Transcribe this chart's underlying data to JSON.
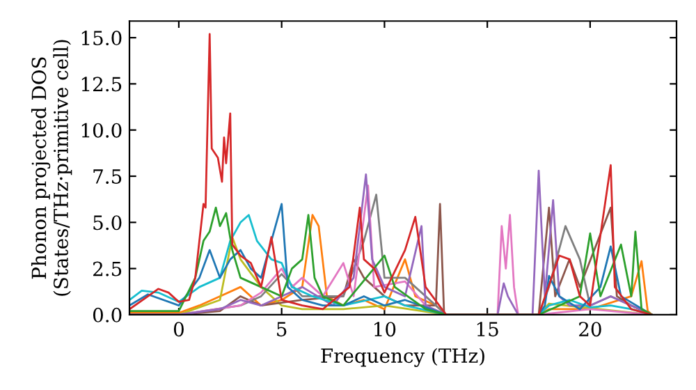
{
  "chart_data": {
    "type": "line",
    "xlabel": "Frequency (THz)",
    "ylabel": "Phonon projected DOS\n(States/THz·primitive cell)",
    "xlim": [
      -2.4,
      24.2
    ],
    "xticks": [
      0,
      5,
      10,
      15,
      20
    ],
    "ylim": [
      0,
      15.9
    ],
    "yticks": [
      {
        "value": 0,
        "label": "0.0"
      },
      {
        "value": 2.5,
        "label": "2.5"
      },
      {
        "value": 5,
        "label": "5.0"
      },
      {
        "value": 7.5,
        "label": "7.5"
      },
      {
        "value": 10,
        "label": "10.0"
      },
      {
        "value": 12.5,
        "label": "12.5"
      },
      {
        "value": 15,
        "label": "15.0"
      }
    ],
    "grid": false,
    "legend": false,
    "marker": "none",
    "line_style": "solid",
    "series": [
      {
        "color": "#ff7f0e",
        "x": [
          -2.4,
          0,
          1,
          2,
          3,
          4,
          5,
          6,
          6.5,
          6.8,
          7.2,
          8,
          9,
          10,
          11,
          11.5,
          12.5,
          13,
          17.5,
          18,
          20,
          22,
          22.5,
          22.8,
          23
        ],
        "values": [
          0.1,
          0.1,
          0.5,
          1.0,
          1.5,
          0.5,
          0.8,
          1.5,
          5.4,
          4.8,
          1.0,
          0.5,
          0.8,
          0.3,
          3.0,
          1.0,
          0.5,
          0,
          0,
          0.3,
          0.3,
          1.0,
          2.9,
          0.2,
          0
        ]
      },
      {
        "color": "#bcbd22",
        "x": [
          -2.4,
          0,
          2,
          2.6,
          3,
          4,
          5,
          6,
          8,
          10,
          13,
          17.5,
          18,
          23
        ],
        "values": [
          0,
          0,
          0.8,
          4.2,
          3.0,
          1.5,
          0.5,
          0.3,
          0.3,
          0.5,
          0,
          0,
          0.6,
          0
        ]
      },
      {
        "color": "#8c564b",
        "x": [
          -2.4,
          0,
          2,
          3,
          4,
          6,
          8,
          8.5,
          9,
          10,
          11,
          12.5,
          12.7,
          12.9,
          17.5,
          18,
          18.3,
          19,
          19.5,
          21,
          21.3,
          22,
          23
        ],
        "values": [
          0,
          0,
          0.2,
          1.0,
          0.5,
          0.8,
          1.0,
          3.0,
          2.0,
          1.0,
          0.5,
          0.5,
          6.0,
          0,
          0,
          5.8,
          1.0,
          3.0,
          1.5,
          5.8,
          1.0,
          0.5,
          0
        ]
      },
      {
        "color": "#7f7f7f",
        "x": [
          -2.4,
          0,
          3,
          4,
          5,
          6,
          8,
          9,
          9.6,
          10,
          11,
          12,
          13,
          17.5,
          18,
          18.8,
          19.5,
          20,
          21,
          23
        ],
        "values": [
          0,
          0,
          0.5,
          1.0,
          2.2,
          1.0,
          1.0,
          4.0,
          6.5,
          2.0,
          2.0,
          1.0,
          0,
          0,
          1.5,
          4.8,
          3.0,
          0.5,
          1.0,
          0
        ]
      },
      {
        "color": "#e377c2",
        "x": [
          -2.4,
          0,
          3,
          4,
          5,
          5.5,
          6,
          7,
          8,
          8.5,
          9.2,
          9.5,
          11,
          12,
          13,
          15.5,
          15.7,
          15.9,
          16.1,
          16.3,
          16.5,
          17.5,
          20,
          23
        ],
        "values": [
          0,
          0,
          0.5,
          1.2,
          2.5,
          1.5,
          2.0,
          1.0,
          2.8,
          1.0,
          7.0,
          1.5,
          1.8,
          0.5,
          0,
          0,
          4.8,
          2.5,
          5.4,
          1.5,
          0,
          0,
          0.3,
          0
        ]
      },
      {
        "color": "#9467bd",
        "x": [
          -2.4,
          0,
          2,
          3,
          4,
          5,
          6,
          7.5,
          8.5,
          9.1,
          9.4,
          10,
          11,
          11.8,
          12,
          13,
          15.5,
          15.8,
          16,
          16.5,
          17.2,
          17.5,
          17.8,
          18.2,
          18.5,
          19,
          20,
          21,
          23
        ],
        "values": [
          0,
          0,
          0.3,
          0.8,
          0.5,
          1.0,
          1.5,
          0.5,
          2.0,
          7.6,
          3.0,
          1.5,
          1.0,
          4.8,
          0.5,
          0,
          0,
          1.7,
          1.0,
          0,
          0,
          7.8,
          1.0,
          6.2,
          1.0,
          0.5,
          0.5,
          1.0,
          0
        ]
      },
      {
        "color": "#17becf",
        "x": [
          -2.4,
          -1.8,
          -1,
          0,
          1,
          2,
          2.5,
          3,
          3.4,
          3.8,
          4.5,
          5,
          5.5,
          6.5,
          8,
          10,
          11,
          13,
          17.5,
          18,
          19,
          20,
          21,
          22,
          23
        ],
        "values": [
          0.8,
          1.3,
          1.2,
          0.7,
          1.5,
          2.0,
          4.0,
          5.0,
          5.4,
          4.0,
          3.0,
          2.8,
          1.5,
          1.0,
          0.5,
          1.0,
          0.5,
          0,
          0,
          0.5,
          0.8,
          0.4,
          0.5,
          0.3,
          0
        ]
      },
      {
        "color": "#1f77b4",
        "x": [
          -2.4,
          -1.5,
          0,
          1,
          1.5,
          2,
          2.5,
          3,
          3.5,
          4,
          5,
          5.3,
          6,
          7,
          8,
          9,
          10,
          11,
          13,
          17.5,
          17.8,
          18,
          18.5,
          19.5,
          20.5,
          21,
          21.5,
          23
        ],
        "values": [
          0.5,
          1.1,
          0.5,
          2.0,
          3.5,
          2.0,
          3.0,
          3.5,
          2.5,
          2.0,
          6.0,
          1.5,
          0.8,
          0.5,
          0.5,
          1.0,
          0.5,
          0.8,
          0,
          0,
          0.5,
          2.1,
          1.0,
          0.3,
          1.5,
          3.7,
          1.0,
          0
        ]
      },
      {
        "color": "#2ca02c",
        "x": [
          -2.4,
          0,
          0.8,
          1.2,
          1.5,
          1.8,
          2.0,
          2.3,
          2.6,
          3,
          4,
          5,
          5.5,
          6,
          6.3,
          6.6,
          7,
          8,
          10,
          10.5,
          12,
          13,
          17.5,
          18.5,
          19.5,
          20,
          20.5,
          21.5,
          22,
          22.2,
          22.5,
          23
        ],
        "values": [
          0.2,
          0.2,
          2.0,
          4.0,
          4.5,
          5.8,
          4.8,
          5.5,
          3.5,
          2.0,
          1.5,
          1.0,
          2.5,
          3.0,
          5.4,
          2.0,
          1.0,
          0.5,
          3.2,
          1.5,
          0.3,
          0,
          0,
          0.5,
          1.0,
          4.4,
          1.0,
          3.8,
          1.0,
          4.5,
          0.3,
          0
        ]
      },
      {
        "color": "#d62728",
        "x": [
          -2.4,
          -1.5,
          -1,
          -0.5,
          0,
          0.5,
          0.8,
          1.0,
          1.2,
          1.3,
          1.5,
          1.6,
          1.9,
          2.1,
          2.2,
          2.3,
          2.5,
          2.6,
          3.0,
          3.5,
          4.0,
          4.5,
          5.0,
          6.0,
          7,
          8.3,
          8.8,
          9.0,
          9.5,
          10,
          11,
          11.5,
          12,
          12.8,
          13,
          17.5,
          18.5,
          19,
          19.5,
          20,
          21,
          21.2,
          22,
          23
        ],
        "values": [
          0.3,
          1.0,
          1.4,
          1.2,
          0.7,
          0.8,
          2.0,
          4.0,
          6.0,
          5.8,
          15.2,
          9.0,
          8.5,
          7.2,
          9.6,
          8.2,
          10.9,
          3.8,
          3.2,
          2.8,
          1.5,
          4.2,
          0.8,
          0.5,
          0.3,
          1.5,
          5.8,
          3.0,
          2.5,
          1.2,
          3.5,
          5.3,
          1.5,
          0.3,
          0,
          0,
          3.2,
          3.0,
          1.0,
          0.5,
          8.1,
          1.5,
          0.3,
          0
        ]
      }
    ]
  }
}
